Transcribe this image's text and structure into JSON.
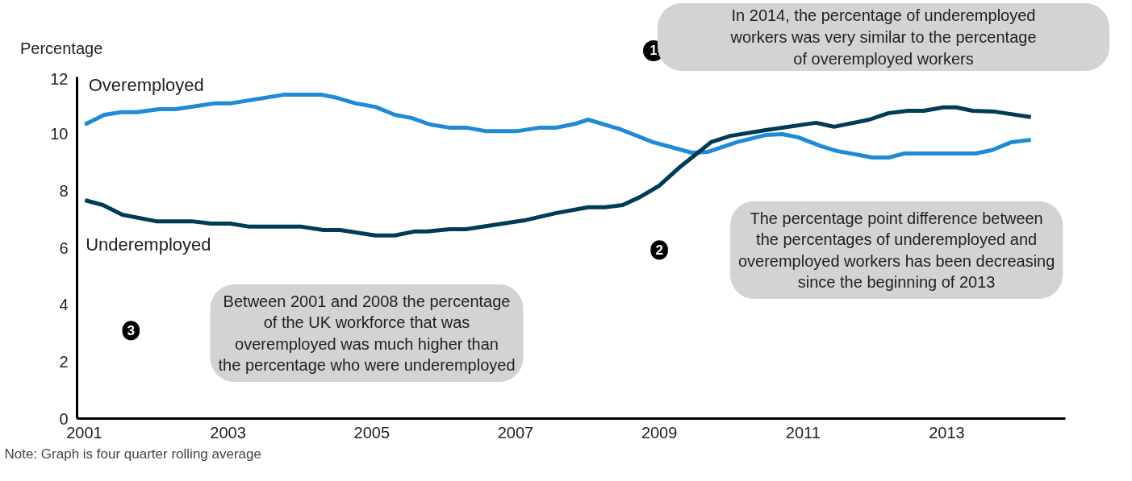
{
  "chart_data": {
    "type": "line",
    "ylabel": "Percentage",
    "xlim": [
      2000.9,
      2014.65
    ],
    "ylim": [
      0,
      12
    ],
    "xticks": [
      2001,
      2003,
      2005,
      2007,
      2009,
      2011,
      2013
    ],
    "yticks": [
      0,
      2,
      4,
      6,
      8,
      10,
      12
    ],
    "grid": false,
    "marker": "none",
    "line_style": "solid",
    "series": [
      {
        "name": "Overemployed",
        "color": "#1f8ad6",
        "x": [
          2001.01,
          2001.28,
          2001.51,
          2001.73,
          2002.04,
          2002.27,
          2002.81,
          2003.03,
          2003.79,
          2004.29,
          2004.51,
          2004.78,
          2005.05,
          2005.32,
          2005.55,
          2005.81,
          2006.08,
          2006.31,
          2006.58,
          2007.03,
          2007.34,
          2007.57,
          2007.84,
          2008.01,
          2008.46,
          2008.91,
          2009.45,
          2009.68,
          2010.08,
          2010.48,
          2010.71,
          2010.93,
          2011.25,
          2011.47,
          2011.97,
          2012.19,
          2012.41,
          2013.4,
          2013.63,
          2013.9,
          2014.17
        ],
        "values": [
          10.33,
          10.67,
          10.76,
          10.76,
          10.87,
          10.87,
          11.07,
          11.07,
          11.38,
          11.38,
          11.27,
          11.07,
          10.95,
          10.67,
          10.56,
          10.33,
          10.22,
          10.22,
          10.1,
          10.1,
          10.22,
          10.22,
          10.36,
          10.5,
          10.16,
          9.71,
          9.34,
          9.37,
          9.71,
          9.96,
          9.99,
          9.88,
          9.57,
          9.4,
          9.17,
          9.17,
          9.31,
          9.31,
          9.43,
          9.71,
          9.79
        ]
      },
      {
        "name": "Underemployed",
        "color": "#003c57",
        "x": [
          2001.01,
          2001.26,
          2001.53,
          2002.0,
          2002.49,
          2002.76,
          2003.03,
          2003.3,
          2004.02,
          2004.33,
          2004.56,
          2005.05,
          2005.32,
          2005.59,
          2005.77,
          2006.08,
          2006.31,
          2007.12,
          2007.57,
          2008.01,
          2008.24,
          2008.49,
          2008.73,
          2009.0,
          2009.27,
          2009.5,
          2009.72,
          2009.99,
          2010.48,
          2011.18,
          2011.43,
          2011.92,
          2012.19,
          2012.46,
          2012.68,
          2012.95,
          2013.13,
          2013.36,
          2013.67,
          2014.17
        ],
        "values": [
          7.67,
          7.5,
          7.16,
          6.93,
          6.93,
          6.85,
          6.85,
          6.74,
          6.74,
          6.62,
          6.62,
          6.43,
          6.43,
          6.57,
          6.57,
          6.65,
          6.65,
          6.96,
          7.22,
          7.42,
          7.42,
          7.5,
          7.78,
          8.18,
          8.8,
          9.26,
          9.71,
          9.93,
          10.13,
          10.39,
          10.25,
          10.5,
          10.73,
          10.81,
          10.81,
          10.93,
          10.93,
          10.81,
          10.78,
          10.59
        ]
      }
    ],
    "annotations": [
      "1",
      "In 2014, the percentage of underemployed\nworkers was very similar to the percentage\nof overemployed workers",
      "2",
      "The percentage point difference between\nthe percentages of underemployed and\noveremployed workers has been decreasing\nsince the beginning of 2013",
      "3",
      "Between 2001 and 2008 the percentage\nof the UK workforce that was\noveremployed was much higher than\nthe percentage who were underemployed",
      "Note: Graph is four quarter rolling average"
    ]
  }
}
